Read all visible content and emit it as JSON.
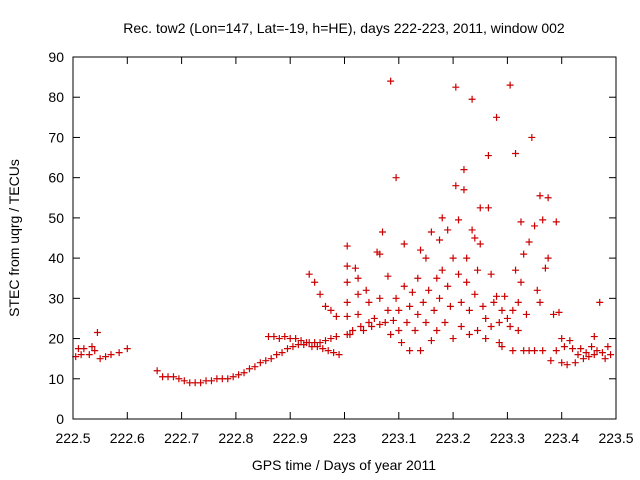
{
  "chart_data": {
    "type": "scatter",
    "title": "Rec. tow2 (Lon=147, Lat=-19, h=HE), days 222-223, 2011, window 002",
    "xlabel": "GPS time / Days of year 2011",
    "ylabel": "STEC from uqrg / TECUs",
    "xlim": [
      222.5,
      223.5
    ],
    "ylim": [
      0,
      90
    ],
    "xticks": [
      222.5,
      222.6,
      222.7,
      222.8,
      222.9,
      223,
      223.1,
      223.2,
      223.3,
      223.4,
      223.5
    ],
    "xtick_labels": [
      "222.5",
      "222.6",
      "222.7",
      "222.8",
      "222.9",
      "223",
      "223.1",
      "223.2",
      "223.3",
      "223.4",
      "223.5"
    ],
    "yticks": [
      0,
      10,
      20,
      30,
      40,
      50,
      60,
      70,
      80,
      90
    ],
    "ytick_labels": [
      "0",
      "10",
      "20",
      "30",
      "40",
      "50",
      "60",
      "70",
      "80",
      "90"
    ],
    "grid": false,
    "marker": "+",
    "color": "#cc0000",
    "series": [
      {
        "name": "STEC",
        "points": [
          [
            222.505,
            15.5
          ],
          [
            222.51,
            17.5
          ],
          [
            222.515,
            16
          ],
          [
            222.52,
            17.5
          ],
          [
            222.53,
            16
          ],
          [
            222.535,
            18
          ],
          [
            222.54,
            17
          ],
          [
            222.545,
            21.5
          ],
          [
            222.55,
            15
          ],
          [
            222.56,
            15.5
          ],
          [
            222.57,
            16
          ],
          [
            222.585,
            16.5
          ],
          [
            222.6,
            17.5
          ],
          [
            222.655,
            12
          ],
          [
            222.665,
            10.5
          ],
          [
            222.675,
            10.5
          ],
          [
            222.685,
            10.5
          ],
          [
            222.695,
            10
          ],
          [
            222.705,
            9.5
          ],
          [
            222.715,
            9
          ],
          [
            222.725,
            9
          ],
          [
            222.735,
            9
          ],
          [
            222.745,
            9.5
          ],
          [
            222.755,
            9.5
          ],
          [
            222.765,
            10
          ],
          [
            222.775,
            10
          ],
          [
            222.785,
            10
          ],
          [
            222.795,
            10.5
          ],
          [
            222.805,
            11
          ],
          [
            222.815,
            11.5
          ],
          [
            222.825,
            12.5
          ],
          [
            222.835,
            13
          ],
          [
            222.845,
            14
          ],
          [
            222.855,
            14.5
          ],
          [
            222.865,
            15
          ],
          [
            222.875,
            16
          ],
          [
            222.885,
            16.5
          ],
          [
            222.895,
            17.5
          ],
          [
            222.905,
            18
          ],
          [
            222.915,
            18.5
          ],
          [
            222.925,
            18.5
          ],
          [
            222.935,
            19
          ],
          [
            222.945,
            19
          ],
          [
            222.955,
            19
          ],
          [
            222.965,
            19.5
          ],
          [
            222.975,
            20
          ],
          [
            222.985,
            20.5
          ],
          [
            222.86,
            20.5
          ],
          [
            222.87,
            20.5
          ],
          [
            222.88,
            20
          ],
          [
            222.89,
            20.5
          ],
          [
            222.9,
            20
          ],
          [
            222.91,
            20
          ],
          [
            222.92,
            19.5
          ],
          [
            222.93,
            19
          ],
          [
            222.94,
            18
          ],
          [
            222.95,
            18
          ],
          [
            222.96,
            17.5
          ],
          [
            222.97,
            17
          ],
          [
            222.98,
            16.5
          ],
          [
            222.99,
            16
          ],
          [
            222.935,
            36
          ],
          [
            222.945,
            34
          ],
          [
            222.955,
            31
          ],
          [
            222.965,
            28
          ],
          [
            222.975,
            27
          ],
          [
            222.985,
            25.5
          ],
          [
            223.005,
            43
          ],
          [
            223.005,
            38
          ],
          [
            223.005,
            34
          ],
          [
            223.005,
            29
          ],
          [
            223.005,
            25.5
          ],
          [
            223.005,
            21
          ],
          [
            223.01,
            21
          ],
          [
            223.015,
            22
          ],
          [
            223.02,
            37.5
          ],
          [
            223.025,
            35
          ],
          [
            223.025,
            31
          ],
          [
            223.025,
            26
          ],
          [
            223.03,
            23
          ],
          [
            223.035,
            22
          ],
          [
            223.04,
            32
          ],
          [
            223.045,
            29
          ],
          [
            223.045,
            24
          ],
          [
            223.05,
            23
          ],
          [
            223.055,
            25
          ],
          [
            223.06,
            41.5
          ],
          [
            223.065,
            41
          ],
          [
            223.065,
            30
          ],
          [
            223.065,
            23.5
          ],
          [
            223.07,
            46.5
          ],
          [
            223.075,
            24
          ],
          [
            223.08,
            35.5
          ],
          [
            223.08,
            27
          ],
          [
            223.085,
            84
          ],
          [
            223.085,
            21
          ],
          [
            223.09,
            24.5
          ],
          [
            223.095,
            60
          ],
          [
            223.095,
            30
          ],
          [
            223.1,
            27
          ],
          [
            223.1,
            22
          ],
          [
            223.105,
            19
          ],
          [
            223.11,
            43.5
          ],
          [
            223.11,
            33
          ],
          [
            223.115,
            24
          ],
          [
            223.12,
            28
          ],
          [
            223.12,
            17
          ],
          [
            223.125,
            31.5
          ],
          [
            223.13,
            22
          ],
          [
            223.135,
            35
          ],
          [
            223.135,
            26
          ],
          [
            223.14,
            42
          ],
          [
            223.14,
            17
          ],
          [
            223.145,
            29
          ],
          [
            223.15,
            24
          ],
          [
            223.15,
            40
          ],
          [
            223.155,
            32
          ],
          [
            223.16,
            19.5
          ],
          [
            223.16,
            46.5
          ],
          [
            223.165,
            27
          ],
          [
            223.17,
            35
          ],
          [
            223.17,
            22
          ],
          [
            223.175,
            44.5
          ],
          [
            223.175,
            30
          ],
          [
            223.18,
            50
          ],
          [
            223.18,
            37
          ],
          [
            223.185,
            24
          ],
          [
            223.19,
            47
          ],
          [
            223.19,
            33
          ],
          [
            223.195,
            28
          ],
          [
            223.2,
            20
          ],
          [
            223.2,
            40
          ],
          [
            223.205,
            82.5
          ],
          [
            223.205,
            58
          ],
          [
            223.21,
            49.5
          ],
          [
            223.21,
            36
          ],
          [
            223.215,
            29
          ],
          [
            223.215,
            23
          ],
          [
            223.22,
            57
          ],
          [
            223.22,
            62
          ],
          [
            223.225,
            40
          ],
          [
            223.225,
            34
          ],
          [
            223.23,
            21
          ],
          [
            223.23,
            27
          ],
          [
            223.235,
            79.5
          ],
          [
            223.235,
            47
          ],
          [
            223.24,
            45
          ],
          [
            223.24,
            31
          ],
          [
            223.245,
            37
          ],
          [
            223.245,
            22
          ],
          [
            223.25,
            52.5
          ],
          [
            223.25,
            43.5
          ],
          [
            223.255,
            28
          ],
          [
            223.26,
            25
          ],
          [
            223.26,
            20
          ],
          [
            223.265,
            65.5
          ],
          [
            223.265,
            52.5
          ],
          [
            223.27,
            36
          ],
          [
            223.27,
            23
          ],
          [
            223.275,
            29
          ],
          [
            223.28,
            75
          ],
          [
            223.28,
            30.5
          ],
          [
            223.285,
            24
          ],
          [
            223.285,
            19
          ],
          [
            223.29,
            27
          ],
          [
            223.29,
            18
          ],
          [
            223.295,
            30.5
          ],
          [
            223.3,
            25
          ],
          [
            223.305,
            83
          ],
          [
            223.305,
            23
          ],
          [
            223.31,
            27
          ],
          [
            223.31,
            17
          ],
          [
            223.315,
            66
          ],
          [
            223.315,
            37
          ],
          [
            223.32,
            29
          ],
          [
            223.32,
            22
          ],
          [
            223.325,
            49
          ],
          [
            223.325,
            34
          ],
          [
            223.33,
            41
          ],
          [
            223.33,
            17
          ],
          [
            223.335,
            26
          ],
          [
            223.34,
            44
          ],
          [
            223.34,
            17
          ],
          [
            223.345,
            70
          ],
          [
            223.35,
            48
          ],
          [
            223.35,
            17
          ],
          [
            223.355,
            32
          ],
          [
            223.36,
            55.5
          ],
          [
            223.36,
            29
          ],
          [
            223.365,
            49.5
          ],
          [
            223.365,
            17
          ],
          [
            223.37,
            37.5
          ],
          [
            223.375,
            55
          ],
          [
            223.375,
            40
          ],
          [
            223.38,
            14.5
          ],
          [
            223.385,
            26
          ],
          [
            223.39,
            49
          ],
          [
            223.39,
            17
          ],
          [
            223.395,
            26.5
          ],
          [
            223.4,
            20
          ],
          [
            223.4,
            14
          ],
          [
            223.405,
            18
          ],
          [
            223.41,
            13.5
          ],
          [
            223.415,
            19.5
          ],
          [
            223.42,
            17.5
          ],
          [
            223.425,
            14
          ],
          [
            223.43,
            16
          ],
          [
            223.435,
            17.5
          ],
          [
            223.44,
            15
          ],
          [
            223.445,
            16.5
          ],
          [
            223.45,
            15.5
          ],
          [
            223.455,
            18
          ],
          [
            223.46,
            20.5
          ],
          [
            223.46,
            16
          ],
          [
            223.465,
            17
          ],
          [
            223.47,
            29
          ],
          [
            223.475,
            16.5
          ],
          [
            223.48,
            15
          ],
          [
            223.485,
            18
          ],
          [
            223.49,
            16
          ]
        ]
      }
    ]
  }
}
